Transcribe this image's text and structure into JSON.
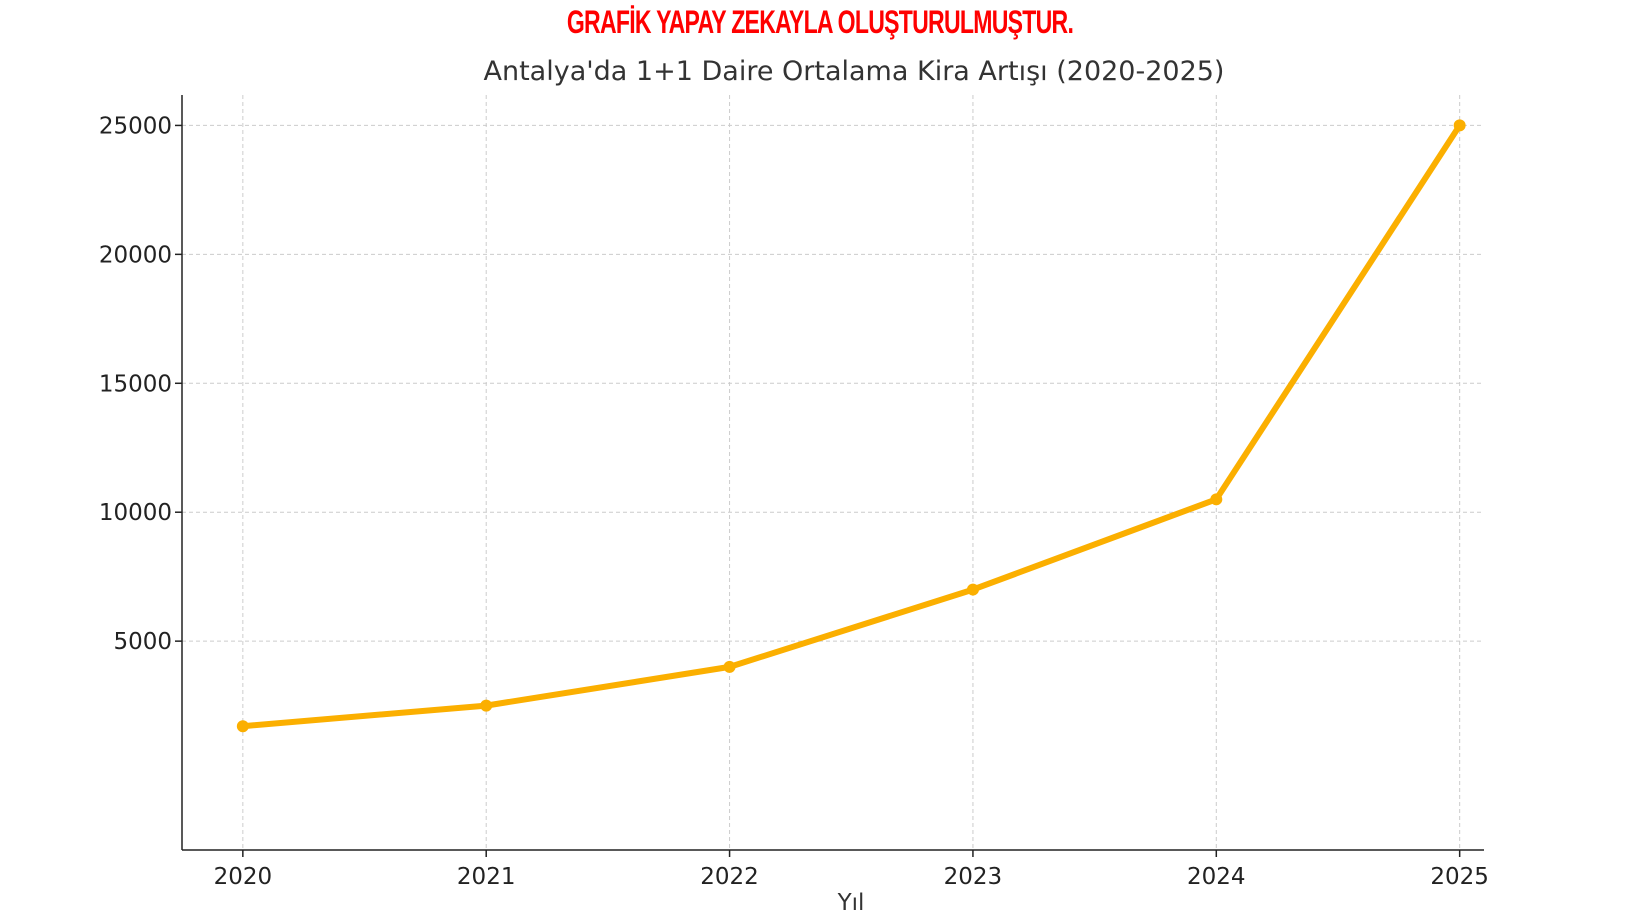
{
  "banner": "GRAFİK YAPAY ZEKAYLA OLUŞTURULMUŞTUR.",
  "colors": {
    "banner": "#ff0000",
    "line": "#fbaf00",
    "grid": "#cccccc",
    "axis": "#222222"
  },
  "chart_data": {
    "type": "line",
    "title": "Antalya'da 1+1 Daire Ortalama Kira Artışı (2020-2025)",
    "xlabel": "Yıl",
    "ylabel": "",
    "x": [
      2020,
      2021,
      2022,
      2023,
      2024,
      2025
    ],
    "x_tick_labels": [
      "2020",
      "2021",
      "2022",
      "2023",
      "2024",
      "2025"
    ],
    "series": [
      {
        "values": [
          1700,
          2500,
          4000,
          7000,
          10500,
          25000
        ]
      }
    ],
    "y_ticks": [
      5000,
      10000,
      15000,
      20000,
      25000
    ],
    "y_tick_labels": [
      "5000",
      "10000",
      "15000",
      "20000",
      "25000"
    ],
    "xlim": [
      2019.75,
      2025.1
    ],
    "ylim": [
      -3100,
      26180
    ],
    "grid": true,
    "grid_style": "dashed",
    "markers": true,
    "legend": "none"
  }
}
